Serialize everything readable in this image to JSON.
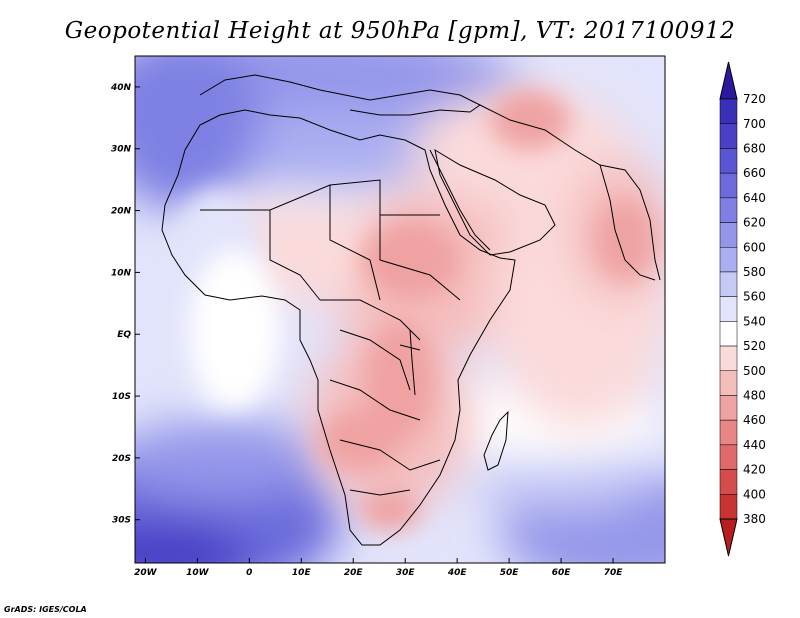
{
  "title": "Geopotential Height at 950hPa [gpm], VT: 2017100912",
  "credit": "GrADS: IGES/COLA",
  "map": {
    "region": "Africa, Arabian Peninsula and western Indian Ocean",
    "lon_range": [
      -22,
      80
    ],
    "lat_range": [
      -37,
      45
    ],
    "lon_ticks": [
      {
        "lon": -20,
        "label": "20W"
      },
      {
        "lon": -10,
        "label": "10W"
      },
      {
        "lon": 0,
        "label": "0"
      },
      {
        "lon": 10,
        "label": "10E"
      },
      {
        "lon": 20,
        "label": "20E"
      },
      {
        "lon": 30,
        "label": "30E"
      },
      {
        "lon": 40,
        "label": "40E"
      },
      {
        "lon": 50,
        "label": "50E"
      },
      {
        "lon": 60,
        "label": "60E"
      },
      {
        "lon": 70,
        "label": "70E"
      }
    ],
    "lat_ticks": [
      {
        "lat": 40,
        "label": "40N"
      },
      {
        "lat": 30,
        "label": "30N"
      },
      {
        "lat": 20,
        "label": "20N"
      },
      {
        "lat": 10,
        "label": "10N"
      },
      {
        "lat": 0,
        "label": "EQ"
      },
      {
        "lat": -10,
        "label": "10S"
      },
      {
        "lat": -20,
        "label": "20S"
      },
      {
        "lat": -30,
        "label": "30S"
      }
    ]
  },
  "colorbar": {
    "levels": [
      "720",
      "700",
      "680",
      "660",
      "640",
      "620",
      "600",
      "580",
      "560",
      "540",
      "520",
      "500",
      "480",
      "460",
      "440",
      "420",
      "400",
      "380"
    ],
    "colors": [
      "#2b1aa0",
      "#3a2fb8",
      "#4a40c6",
      "#5a55d2",
      "#6b6bdc",
      "#7e80e3",
      "#9496ea",
      "#abaff1",
      "#c6c9f6",
      "#e2e4fb",
      "#ffffff",
      "#fbdada",
      "#f5bcbc",
      "#efa2a2",
      "#e88686",
      "#e06a6a",
      "#d54c4c",
      "#c83434",
      "#b81e1e"
    ]
  }
}
